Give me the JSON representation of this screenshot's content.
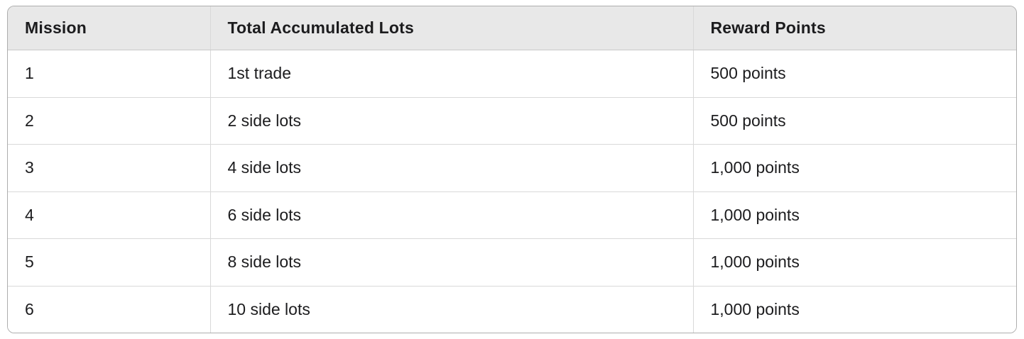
{
  "table": {
    "columns": [
      {
        "label": "Mission"
      },
      {
        "label": "Total Accumulated Lots"
      },
      {
        "label": "Reward Points"
      }
    ],
    "rows": [
      {
        "mission": "1",
        "lots": "1st trade",
        "reward": "500 points"
      },
      {
        "mission": "2",
        "lots": "2 side lots",
        "reward": "500 points"
      },
      {
        "mission": "3",
        "lots": "4 side lots",
        "reward": "1,000 points"
      },
      {
        "mission": "4",
        "lots": "6 side lots",
        "reward": "1,000 points"
      },
      {
        "mission": "5",
        "lots": "8 side lots",
        "reward": "1,000 points"
      },
      {
        "mission": "6",
        "lots": "10 side lots",
        "reward": "1,000 points"
      }
    ],
    "colors": {
      "header_background": "#e8e8e8",
      "outer_border": "#adadad",
      "inner_border": "#d9d9d9",
      "text": "#1c1c1e"
    }
  }
}
